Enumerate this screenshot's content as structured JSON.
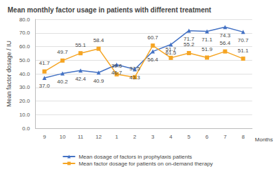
{
  "chart_data": {
    "type": "line",
    "title": "Mean monthly factor usage in patients with different treatment",
    "x_label": "Months",
    "y_label": "Mean factor dosage / IU",
    "categories": [
      "9",
      "10",
      "11",
      "12",
      "1",
      "2",
      "3",
      "4",
      "5",
      "6",
      "7",
      "8"
    ],
    "series": [
      {
        "name": "Mean dosage of factors in prophylaxis patients",
        "color": "#4472c4",
        "marker": "triangle",
        "values": [
          37.0,
          40.2,
          42.4,
          40.9,
          46.7,
          43.3,
          56.4,
          61.5,
          71.7,
          71.1,
          74.3,
          70.7
        ],
        "value_labels": [
          "37.0",
          "40.2",
          "42.4",
          "40.9",
          "46.7",
          "43.3",
          "56.4",
          "61.5",
          "71.7",
          "71.1",
          "74.3",
          "70.7"
        ]
      },
      {
        "name": "Mean factor dosage for patients on on-demand therapy",
        "color": "#f5a524",
        "marker": "square",
        "values": [
          41.7,
          49.7,
          55.1,
          58.4,
          39.6,
          37.5,
          60.7,
          51.7,
          55.2,
          51.9,
          56.4,
          51.1
        ],
        "value_labels": [
          "41.7",
          "49.7",
          "55.1",
          "58.4",
          "39.6",
          "37.5",
          "60.7",
          "51.7",
          "55.2",
          "51.9",
          "56.4",
          "51.1"
        ]
      }
    ],
    "ylim": [
      0,
      80
    ],
    "yticks": [
      {
        "value": 0,
        "label": "0.0"
      },
      {
        "value": 10,
        "label": "10.0"
      },
      {
        "value": 20,
        "label": "20.0"
      },
      {
        "value": 30,
        "label": "30.0"
      },
      {
        "value": 40,
        "label": "40.0"
      },
      {
        "value": 50,
        "label": "50.0"
      },
      {
        "value": 60,
        "label": "60.0"
      },
      {
        "value": 70,
        "label": "70.0"
      },
      {
        "value": 80,
        "label": "80.0"
      }
    ],
    "grid": true,
    "legend": "bottom",
    "data_labels": true
  }
}
